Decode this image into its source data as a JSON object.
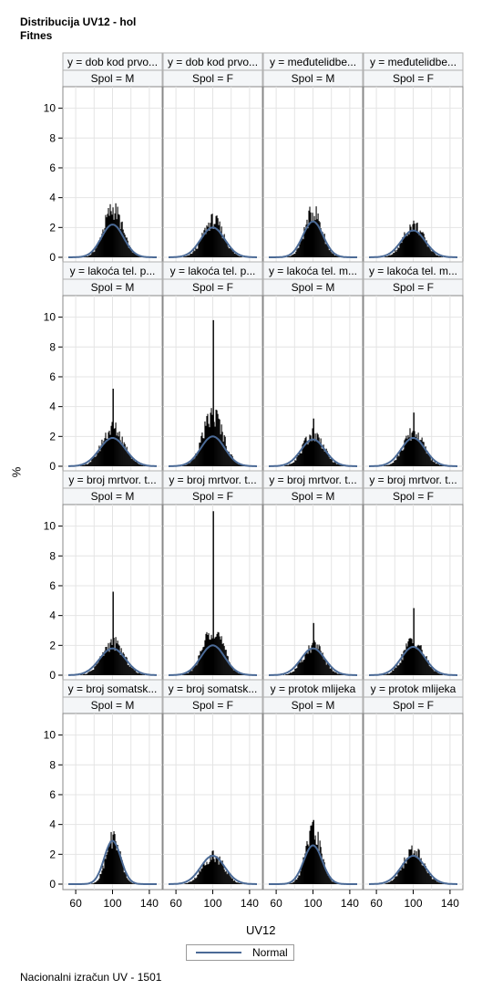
{
  "title": "Distribucija UV12 - hol",
  "subtitle": "Fitnes",
  "footnote": "Nacionalni izračun UV - 1501",
  "legend": {
    "label": "Normal",
    "color": "#4b6a96"
  },
  "chart_data": {
    "type": "histogram-panel",
    "xlabel": "UV12",
    "ylabel": "%",
    "xlim": [
      50,
      150
    ],
    "ylim": [
      0,
      11.2
    ],
    "xticks": [
      60,
      100,
      140
    ],
    "yticks": [
      0,
      2,
      4,
      6,
      8,
      10
    ],
    "grid": true,
    "legend_position": "bottom",
    "rows": [
      {
        "panels": [
          {
            "label": "y = dob kod prvo...",
            "sex": "Spol = M",
            "peak": 3.3,
            "spike": null,
            "normal_peak": 2.2,
            "sd": 12
          },
          {
            "label": "y = dob kod prvo...",
            "sex": "Spol = F",
            "peak": 2.5,
            "spike": null,
            "normal_peak": 2.0,
            "sd": 13
          },
          {
            "label": "y = međutelidbe...",
            "sex": "Spol = M",
            "peak": 3.1,
            "spike": null,
            "normal_peak": 2.4,
            "sd": 11
          },
          {
            "label": "y = međutelidbe...",
            "sex": "Spol = F",
            "peak": 2.2,
            "spike": null,
            "normal_peak": 1.8,
            "sd": 13
          }
        ]
      },
      {
        "panels": [
          {
            "label": "y = lakoća tel. p...",
            "sex": "Spol = M",
            "peak": 2.6,
            "spike": 5.2,
            "normal_peak": 1.9,
            "sd": 14
          },
          {
            "label": "y = lakoća tel. p...",
            "sex": "Spol = F",
            "peak": 3.5,
            "spike": 9.8,
            "normal_peak": 2.0,
            "sd": 13
          },
          {
            "label": "y = lakoća tel. m...",
            "sex": "Spol = M",
            "peak": 2.2,
            "spike": 3.2,
            "normal_peak": 1.8,
            "sd": 13
          },
          {
            "label": "y = lakoća tel. m...",
            "sex": "Spol = F",
            "peak": 2.3,
            "spike": 3.6,
            "normal_peak": 1.9,
            "sd": 13
          }
        ]
      },
      {
        "panels": [
          {
            "label": "y = broj mrtvor. t...",
            "sex": "Spol = M",
            "peak": 2.2,
            "spike": 5.6,
            "normal_peak": 1.8,
            "sd": 14
          },
          {
            "label": "y = broj mrtvor. t...",
            "sex": "Spol = F",
            "peak": 3.2,
            "spike": 11.0,
            "normal_peak": 2.0,
            "sd": 13
          },
          {
            "label": "y = broj mrtvor. t...",
            "sex": "Spol = M",
            "peak": 2.0,
            "spike": 3.5,
            "normal_peak": 1.8,
            "sd": 13
          },
          {
            "label": "y = broj mrtvor. t...",
            "sex": "Spol = F",
            "peak": 2.4,
            "spike": 4.5,
            "normal_peak": 1.9,
            "sd": 13
          }
        ]
      },
      {
        "panels": [
          {
            "label": "y = broj somatsk...",
            "sex": "Spol = M",
            "peak": 3.2,
            "spike": null,
            "normal_peak": 2.9,
            "sd": 9
          },
          {
            "label": "y = broj somatsk...",
            "sex": "Spol = F",
            "peak": 2.0,
            "spike": null,
            "normal_peak": 1.9,
            "sd": 13
          },
          {
            "label": "y = protok mlijeka",
            "sex": "Spol = M",
            "peak": 3.5,
            "spike": 4.3,
            "normal_peak": 2.6,
            "sd": 10
          },
          {
            "label": "y = protok mlijeka",
            "sex": "Spol = F",
            "peak": 2.3,
            "spike": null,
            "normal_peak": 1.9,
            "sd": 13
          }
        ]
      }
    ]
  }
}
